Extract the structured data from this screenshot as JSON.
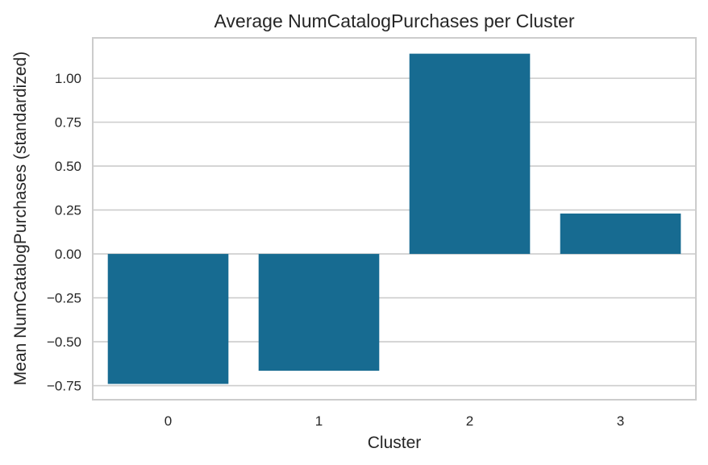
{
  "chart_data": {
    "type": "bar",
    "title": "Average NumCatalogPurchases per Cluster",
    "xlabel": "Cluster",
    "ylabel": "Mean NumCatalogPurchases (standardized)",
    "categories": [
      "0",
      "1",
      "2",
      "3"
    ],
    "values": [
      -0.74,
      -0.665,
      1.14,
      0.23
    ],
    "ylim": [
      -0.83,
      1.23
    ],
    "yticks": [
      -0.75,
      -0.5,
      -0.25,
      0.0,
      0.25,
      0.5,
      0.75,
      1.0
    ],
    "ytick_labels": [
      "−0.75",
      "−0.50",
      "−0.25",
      "0.00",
      "0.25",
      "0.50",
      "0.75",
      "1.00"
    ],
    "bar_color": "#176b91",
    "grid": true,
    "legend": "none"
  }
}
